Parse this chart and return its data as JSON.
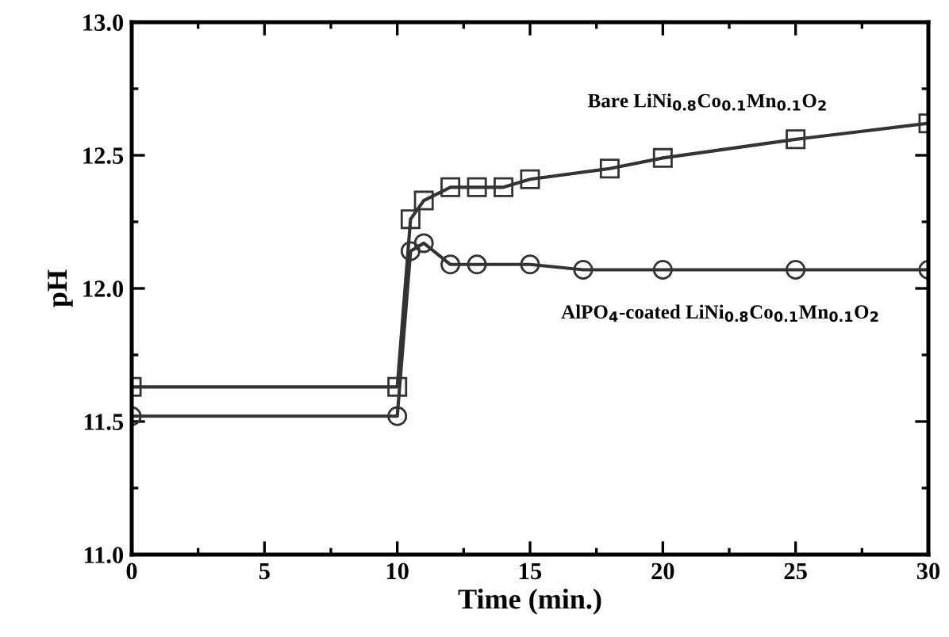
{
  "chart_data": {
    "type": "line",
    "xlabel": "Time (min.)",
    "ylabel": "pH",
    "xlim": [
      0,
      30
    ],
    "xticks": [
      0,
      5,
      10,
      15,
      20,
      25,
      30
    ],
    "ylim": [
      11.0,
      13.0
    ],
    "yticks": [
      {
        "value": 11.0,
        "label": "11.0"
      },
      {
        "value": 11.5,
        "label": "11.5"
      },
      {
        "value": 12.0,
        "label": "12.0"
      },
      {
        "value": 12.5,
        "label": "12.5"
      },
      {
        "value": 13.0,
        "label": "13.0"
      }
    ],
    "grid": false,
    "legend": false,
    "line_style": "solid",
    "series": [
      {
        "name": "Bare LiNi$_{0.8}$Co$_{0.1}$Mn$_{0.1}$O$_{2}$",
        "color": "#333333",
        "marker": "square",
        "x": [
          0,
          10,
          10.5,
          11,
          12,
          13,
          14,
          15,
          18,
          20,
          25,
          30
        ],
        "values": [
          11.63,
          11.63,
          12.26,
          12.33,
          12.38,
          12.38,
          12.38,
          12.41,
          12.45,
          12.49,
          12.56,
          12.62
        ]
      },
      {
        "name": "AlPO$_{4}$-coated LiNi$_{0.8}$Co$_{0.1}$Mn$_{0.1}$O$_{2}$",
        "color": "#333333",
        "marker": "circle",
        "x": [
          0,
          10,
          10.5,
          11,
          12,
          13,
          15,
          17,
          20,
          25,
          30
        ],
        "values": [
          11.52,
          11.52,
          12.14,
          12.17,
          12.09,
          12.09,
          12.09,
          12.07,
          12.07,
          12.07,
          12.07
        ]
      }
    ]
  }
}
